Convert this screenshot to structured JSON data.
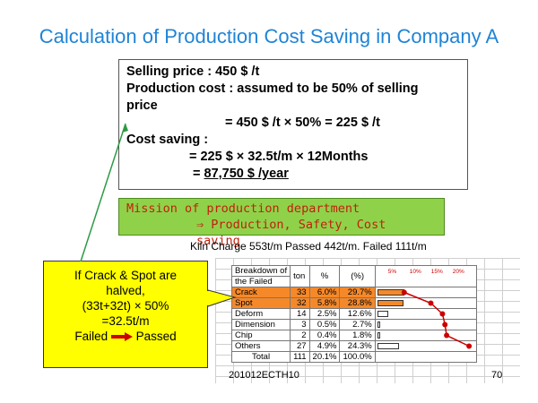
{
  "title": "Calculation of Production Cost Saving in Company A",
  "calc": {
    "l1": "Selling price : 450 $ /t",
    "l2": "Production cost : assumed to be 50% of selling",
    "l3": "price",
    "l4": "= 450 $ /t × 50% = 225 $ /t",
    "l5": "Cost saving :",
    "l6": "= 225 $  × 32.5t/m × 12Months",
    "l7a": "= ",
    "l7b": "87,750 $ /year"
  },
  "mission": {
    "l1": "Mission of production department",
    "l2": "⇒ Production, Safety, Cost saving"
  },
  "kiln": "Kiln Charge 553t/m Passed 442t/m. Failed 111t/m",
  "table": {
    "headers": {
      "breakdown1": "Breakdown of",
      "breakdown2": "the Failed",
      "ton": "ton",
      "pct": "%",
      "pct2": "(%)",
      "scale": [
        "5%",
        "10%",
        "15%",
        "20%"
      ]
    },
    "rows": [
      {
        "name": "Crack",
        "ton": "33",
        "pct": "6.0%",
        "cum": "29.7%",
        "cumv": 29.7,
        "pv": 6.0,
        "hl": true
      },
      {
        "name": "Spot",
        "ton": "32",
        "pct": "5.8%",
        "cum": "28.8%",
        "cumv": 58.5,
        "pv": 5.8,
        "hl": true
      },
      {
        "name": "Deform",
        "ton": "14",
        "pct": "2.5%",
        "cum": "12.6%",
        "cumv": 71.1,
        "pv": 2.5,
        "hl": false
      },
      {
        "name": "Dimension",
        "ton": "3",
        "pct": "0.5%",
        "cum": "2.7%",
        "cumv": 73.8,
        "pv": 0.5,
        "hl": false
      },
      {
        "name": "Chip",
        "ton": "2",
        "pct": "0.4%",
        "cum": "1.8%",
        "cumv": 75.6,
        "pv": 0.4,
        "hl": false
      },
      {
        "name": "Others",
        "ton": "27",
        "pct": "4.9%",
        "cum": "24.3%",
        "cumv": 99.9,
        "pv": 4.9,
        "hl": false
      }
    ],
    "total": {
      "name": "Total",
      "ton": "111",
      "pct": "20.1%",
      "cum": "100.0%"
    }
  },
  "footer": {
    "left": "201012ECTH10",
    "right": "70"
  },
  "callout": {
    "l1": "If Crack & Spot are",
    "l2": "halved,",
    "l3": "(33t+32t) × 50%",
    "l4": "=32.5t/m",
    "l5a": "Failed",
    "l5b": "Passed"
  },
  "colors": {
    "title": "#1f84d6",
    "mission_bg": "#8fd24a",
    "mission_text": "#c0210d",
    "highlight": "#f5892a",
    "callout_bg": "#ffff00",
    "pointer": "#2e9a44"
  }
}
